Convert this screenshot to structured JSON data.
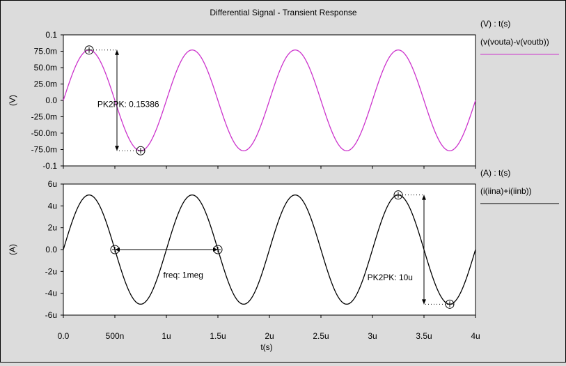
{
  "title": "Differential Signal - Transient Response",
  "xlabel": "t(s)",
  "x_ticks": [
    {
      "value": 0,
      "label": "0.0"
    },
    {
      "value": 0.5,
      "label": "500n"
    },
    {
      "value": 1,
      "label": "1u"
    },
    {
      "value": 1.5,
      "label": "1.5u"
    },
    {
      "value": 2,
      "label": "2u"
    },
    {
      "value": 2.5,
      "label": "2.5u"
    },
    {
      "value": 3,
      "label": "3u"
    },
    {
      "value": 3.5,
      "label": "3.5u"
    },
    {
      "value": 4,
      "label": "4u"
    }
  ],
  "colors": {
    "background": "#dcdcdc",
    "plot_bg": "#ffffff",
    "voltage_trace": "#cc33cc",
    "current_trace": "#000000"
  },
  "chart_data": [
    {
      "type": "line",
      "ylabel": "(V)",
      "xlim": [
        0,
        4
      ],
      "ylim": [
        -0.1,
        0.1
      ],
      "y_ticks": [
        {
          "value": 0.1,
          "label": "0.1"
        },
        {
          "value": 0.075,
          "label": "75.0m"
        },
        {
          "value": 0.05,
          "label": "50.0m"
        },
        {
          "value": 0.025,
          "label": "25.0m"
        },
        {
          "value": 0,
          "label": "0.0"
        },
        {
          "value": -0.025,
          "label": "-25.0m"
        },
        {
          "value": -0.05,
          "label": "-50.0m"
        },
        {
          "value": -0.075,
          "label": "-75.0m"
        },
        {
          "value": -0.1,
          "label": "-0.1"
        }
      ],
      "legend_header": "(V) : t(s)",
      "series": [
        {
          "name": "(v(vouta)-v(voutb))",
          "color": "#cc33cc",
          "function": "sine",
          "amplitude": 0.0769,
          "frequency_per_us": 1,
          "x_start": 0,
          "x_end": 4
        }
      ],
      "markers": [
        {
          "x": 0.25,
          "y": 0.0769
        },
        {
          "x": 0.75,
          "y": -0.0769
        }
      ],
      "annotations": [
        {
          "text": "PK2PK: 0.15386",
          "kind": "vertical-measure",
          "x": 0.25,
          "y1": 0.0769,
          "y2": -0.0769,
          "label_x": 0.33,
          "label_y": -0.01
        }
      ]
    },
    {
      "type": "line",
      "ylabel": "(A)",
      "xlim": [
        0,
        4
      ],
      "ylim": [
        -6,
        6
      ],
      "y_ticks": [
        {
          "value": 6,
          "label": "6u"
        },
        {
          "value": 4,
          "label": "4u"
        },
        {
          "value": 2,
          "label": "2u"
        },
        {
          "value": 0,
          "label": "0.0"
        },
        {
          "value": -2,
          "label": "-2u"
        },
        {
          "value": -4,
          "label": "-4u"
        },
        {
          "value": -6,
          "label": "-6u"
        }
      ],
      "legend_header": "(A) : t(s)",
      "series": [
        {
          "name": "(i(iina)+i(iinb))",
          "color": "#000000",
          "function": "sine",
          "amplitude": 5,
          "frequency_per_us": 1,
          "x_start": 0,
          "x_end": 4
        }
      ],
      "markers": [
        {
          "x": 0.5,
          "y": 0
        },
        {
          "x": 1.5,
          "y": 0
        },
        {
          "x": 3.25,
          "y": 5
        },
        {
          "x": 3.75,
          "y": -5
        }
      ],
      "annotations": [
        {
          "text": "freq: 1meg",
          "kind": "horizontal-measure",
          "x1": 0.5,
          "x2": 1.5,
          "y": 0,
          "label_x": 0.97,
          "label_y": -2.6
        },
        {
          "text": "PK2PK: 10u",
          "kind": "vertical-measure",
          "x": 3.5,
          "y1": 5,
          "y2": -5,
          "label_x": 2.95,
          "label_y": -2.8
        }
      ]
    }
  ]
}
